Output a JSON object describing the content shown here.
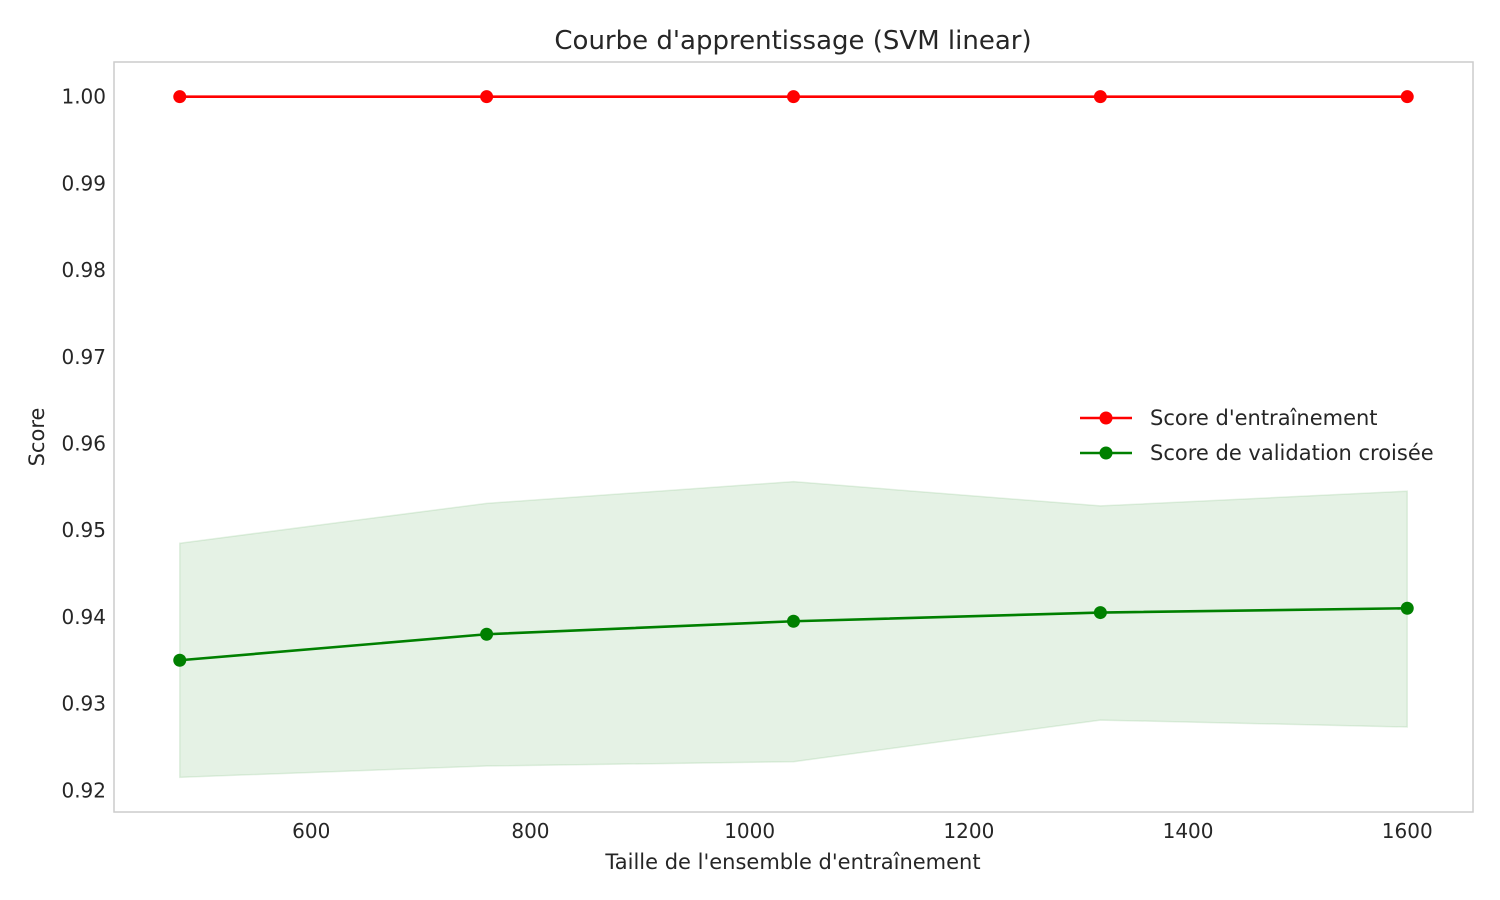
{
  "chart_data": {
    "type": "line",
    "title": "Courbe d'apprentissage (SVM linear)",
    "xlabel": "Taille de l'ensemble d'entraînement",
    "ylabel": "Score",
    "xlim": [
      420,
      1660
    ],
    "ylim": [
      0.9175,
      1.004
    ],
    "xticks": [
      600,
      800,
      1000,
      1200,
      1400,
      1600
    ],
    "xtick_labels": [
      "600",
      "800",
      "1000",
      "1200",
      "1400",
      "1600"
    ],
    "yticks": [
      0.92,
      0.93,
      0.94,
      0.95,
      0.96,
      0.97,
      0.98,
      0.99,
      1.0
    ],
    "ytick_labels": [
      "0.92",
      "0.93",
      "0.94",
      "0.95",
      "0.96",
      "0.97",
      "0.98",
      "0.99",
      "1.00"
    ],
    "grid": false,
    "legend_position": "center-right",
    "x": [
      480,
      760,
      1040,
      1320,
      1600
    ],
    "series": [
      {
        "name": "Score d'entraînement",
        "color": "#ff0000",
        "values": [
          1.0,
          1.0,
          1.0,
          1.0,
          1.0
        ],
        "band_lower": [
          1.0,
          1.0,
          1.0,
          1.0,
          1.0
        ],
        "band_upper": [
          1.0,
          1.0,
          1.0,
          1.0,
          1.0
        ]
      },
      {
        "name": "Score de validation croisée",
        "color": "#008000",
        "values": [
          0.935,
          0.938,
          0.9395,
          0.9405,
          0.941
        ],
        "band_lower": [
          0.9215,
          0.9228,
          0.9233,
          0.9281,
          0.9273
        ],
        "band_upper": [
          0.9485,
          0.9531,
          0.9556,
          0.9528,
          0.9545
        ]
      }
    ]
  }
}
